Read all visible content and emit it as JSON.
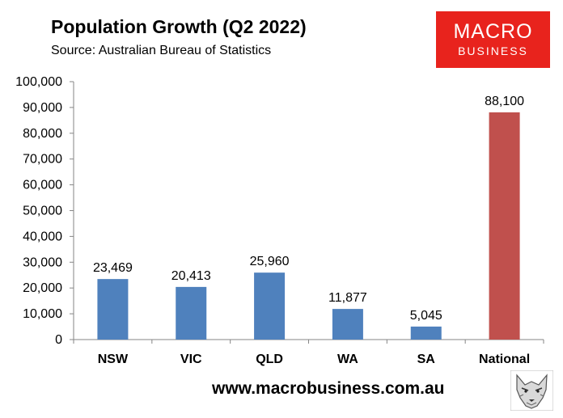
{
  "title": "Population Growth (Q2 2022)",
  "subtitle": "Source: Australian Bureau of Statistics",
  "logo": {
    "line1": "MACRO",
    "line2": "BUSINESS"
  },
  "footer": {
    "url": "www.macrobusiness.com.au"
  },
  "colors": {
    "primary_bar": "#4f81bd",
    "highlight_bar": "#c0504d",
    "logo_bg": "#e8231d"
  },
  "chart_data": {
    "type": "bar",
    "title": "Population Growth (Q2 2022)",
    "subtitle": "Source: Australian Bureau of Statistics",
    "categories": [
      "NSW",
      "VIC",
      "QLD",
      "WA",
      "SA",
      "National"
    ],
    "values": [
      23469,
      20413,
      25960,
      11877,
      5045,
      88100
    ],
    "value_labels": [
      "23,469",
      "20,413",
      "25,960",
      "11,877",
      "5,045",
      "88,100"
    ],
    "highlight_category": "National",
    "y_ticks": [
      "0",
      "10,000",
      "20,000",
      "30,000",
      "40,000",
      "50,000",
      "60,000",
      "70,000",
      "80,000",
      "90,000",
      "100,000"
    ],
    "ylim": [
      0,
      100000
    ],
    "grid": false,
    "legend": "none"
  }
}
